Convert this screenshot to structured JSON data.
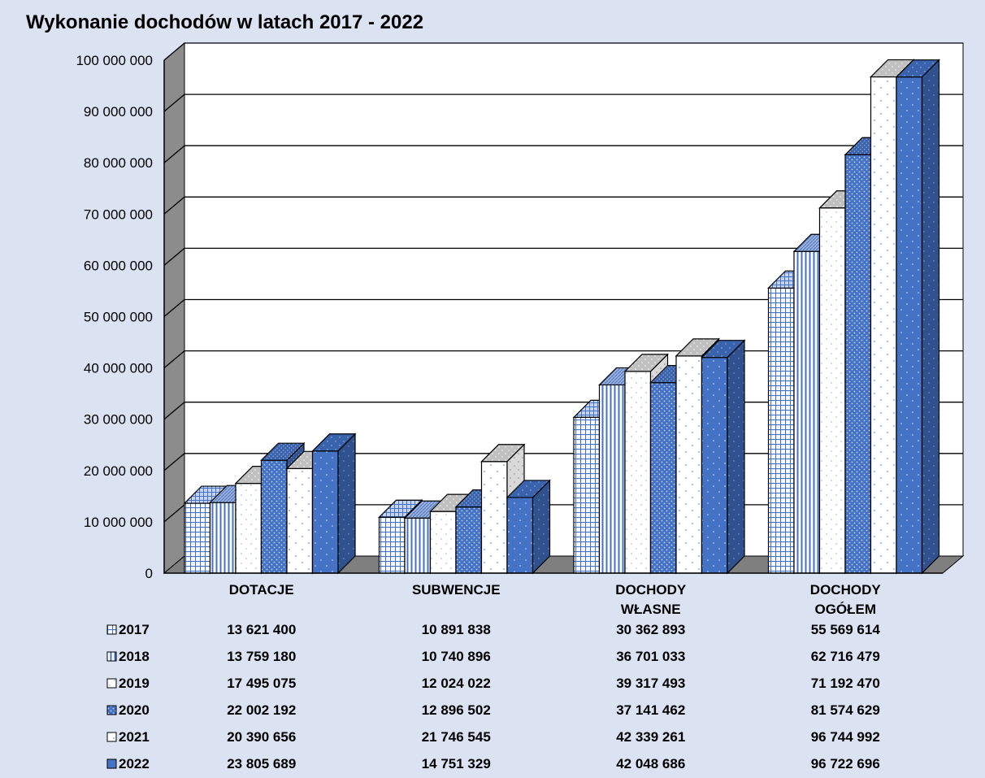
{
  "chart_data": {
    "type": "bar",
    "title": "Wykonanie dochodów w latach 2017 - 2022",
    "categories": [
      [
        "DOTACJE"
      ],
      [
        "SUBWENCJE"
      ],
      [
        "DOCHODY",
        "WŁASNE"
      ],
      [
        "DOCHODY",
        "OGÓŁEM"
      ]
    ],
    "ylim": [
      0,
      100000000
    ],
    "yticks": [
      {
        "value": 0,
        "label": "0"
      },
      {
        "value": 10000000,
        "label": "10 000 000"
      },
      {
        "value": 20000000,
        "label": "20 000 000"
      },
      {
        "value": 30000000,
        "label": "30 000 000"
      },
      {
        "value": 40000000,
        "label": "40 000 000"
      },
      {
        "value": 50000000,
        "label": "50 000 000"
      },
      {
        "value": 60000000,
        "label": "60 000 000"
      },
      {
        "value": 70000000,
        "label": "70 000 000"
      },
      {
        "value": 80000000,
        "label": "80 000 000"
      },
      {
        "value": 90000000,
        "label": "90 000 000"
      },
      {
        "value": 100000000,
        "label": "100 000 000"
      }
    ],
    "grid": true,
    "legend": "data-table-below",
    "series": [
      {
        "name": "2017",
        "pattern": "grid",
        "values": [
          13621400,
          10891838,
          30362893,
          55569614
        ],
        "labels": [
          "13 621 400",
          "10 891 838",
          "30 362 893",
          "55 569 614"
        ]
      },
      {
        "name": "2018",
        "pattern": "vlines",
        "values": [
          13759180,
          10740896,
          36701033,
          62716479
        ],
        "labels": [
          "13 759 180",
          "10 740 896",
          "36 701 033",
          "62 716 479"
        ]
      },
      {
        "name": "2019",
        "pattern": "white-dots",
        "values": [
          17495075,
          12024022,
          39317493,
          71192470
        ],
        "labels": [
          "17 495 075",
          "12 024 022",
          "39 317 493",
          "71 192 470"
        ]
      },
      {
        "name": "2020",
        "pattern": "blue-dense",
        "values": [
          22002192,
          12896502,
          37141462,
          81574629
        ],
        "labels": [
          "22 002 192",
          "12 896 502",
          "37 141 462",
          "81 574 629"
        ]
      },
      {
        "name": "2021",
        "pattern": "white-sparse",
        "values": [
          20390656,
          21746545,
          42339261,
          96744992
        ],
        "labels": [
          "20 390 656",
          "21 746 545",
          "42 339 261",
          "96 744 992"
        ]
      },
      {
        "name": "2022",
        "pattern": "blue-sparse",
        "values": [
          23805689,
          14751329,
          42048686,
          96722696
        ],
        "labels": [
          "23 805 689",
          "14 751 329",
          "42 048 686",
          "96 722 696"
        ]
      }
    ],
    "colors": {
      "background": "#dbe3f3",
      "wall": "#ffffff",
      "gridline": "#000000",
      "floor": "#7f7f7f",
      "blue": "#4472c4",
      "blue_dark": "#2f528f",
      "white_top": "#bfbfbf"
    }
  }
}
